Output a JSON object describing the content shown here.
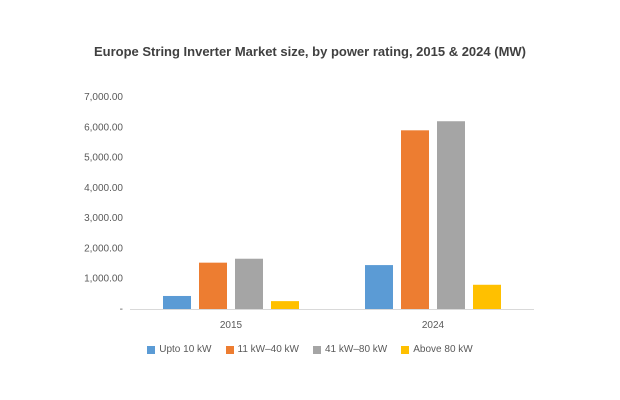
{
  "chart_data": {
    "type": "bar",
    "title": "Europe String Inverter Market size, by power rating, 2015 & 2024 (MW)",
    "categories": [
      "2015",
      "2024"
    ],
    "series": [
      {
        "name": "Upto 10 kW",
        "color": "#5B9BD5",
        "values": [
          430,
          1450
        ]
      },
      {
        "name": "11 kW–40 kW",
        "color": "#ED7D31",
        "values": [
          1530,
          5900
        ]
      },
      {
        "name": "41 kW–80 kW",
        "color": "#A5A5A5",
        "values": [
          1660,
          6200
        ]
      },
      {
        "name": "Above 80 kW",
        "color": "#FFC000",
        "values": [
          260,
          800
        ]
      }
    ],
    "ylim": [
      0,
      7000
    ],
    "yticks": [
      0,
      1000,
      2000,
      3000,
      4000,
      5000,
      6000,
      7000
    ],
    "ytick_labels": [
      "-",
      "1,000.00",
      "2,000.00",
      "3,000.00",
      "4,000.00",
      "5,000.00",
      "6,000.00",
      "7,000.00"
    ],
    "xlabel": "",
    "ylabel": "",
    "grid": false,
    "legend_position": "bottom"
  }
}
